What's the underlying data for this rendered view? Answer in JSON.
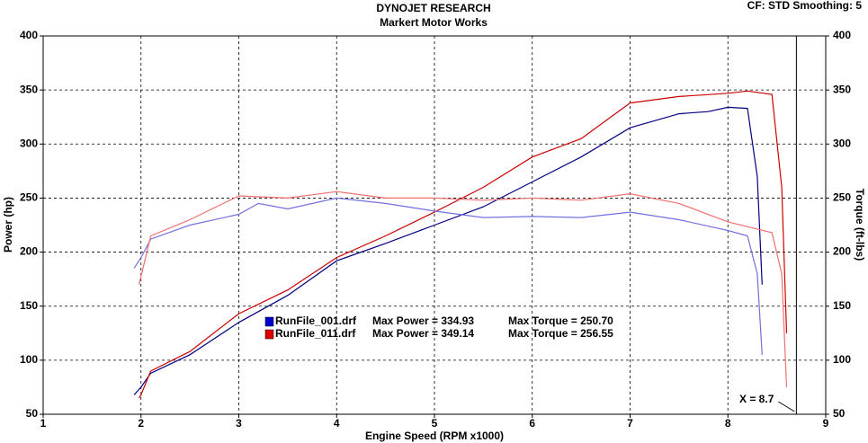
{
  "chart_data": {
    "type": "line",
    "title": "DYNOJET RESEARCH",
    "subtitle": "Markert Motor Works",
    "corner_note": "CF: STD  Smoothing: 5",
    "x_label": "Engine Speed (RPM x1000)",
    "y_label": "Power (hp)",
    "y2_label": "Torque (ft-lbs)",
    "xlim": [
      1,
      9
    ],
    "xticks": [
      1,
      2,
      3,
      4,
      5,
      6,
      7,
      8,
      9
    ],
    "ylim": [
      50,
      400
    ],
    "yticks": [
      50,
      100,
      150,
      200,
      250,
      300,
      350,
      400
    ],
    "y2lim": [
      50,
      400
    ],
    "y2ticks": [
      50,
      100,
      150,
      200,
      250,
      300,
      350,
      400
    ],
    "grid": true,
    "cursor": {
      "value": 8.7,
      "label": "X = 8.7"
    },
    "legend": [
      {
        "name": "RunFile_001.drf",
        "power_label": "Max Power = 334.93",
        "torque_label": "Max Torque = 250.70",
        "color": "#0000cc"
      },
      {
        "name": "RunFile_011.drf",
        "power_label": "Max Power = 349.14",
        "torque_label": "Max Torque = 256.55",
        "color": "#dd0000"
      }
    ],
    "series": [
      {
        "color": "#000080",
        "x": [
          1.93,
          2.0,
          2.1,
          2.5,
          3.0,
          3.5,
          4.0,
          4.5,
          5.0,
          5.5,
          6.0,
          6.5,
          7.0,
          7.5,
          7.8,
          8.0,
          8.2,
          8.3,
          8.35
        ],
        "values": [
          68,
          75,
          88,
          105,
          135,
          160,
          192,
          208,
          225,
          242,
          265,
          288,
          315,
          328,
          330,
          334,
          333,
          270,
          170
        ]
      },
      {
        "color": "#cc0000",
        "x": [
          1.98,
          2.0,
          2.1,
          2.5,
          3.0,
          3.5,
          4.0,
          4.5,
          5.0,
          5.5,
          6.0,
          6.5,
          7.0,
          7.5,
          8.0,
          8.2,
          8.45,
          8.55,
          8.6
        ],
        "values": [
          65,
          68,
          90,
          108,
          143,
          165,
          195,
          215,
          237,
          260,
          288,
          305,
          338,
          344,
          347,
          349,
          346,
          260,
          125
        ]
      },
      {
        "color": "#7070e0",
        "axis": "y2",
        "x": [
          1.93,
          2.0,
          2.1,
          2.5,
          3.0,
          3.2,
          3.5,
          4.0,
          4.5,
          5.0,
          5.5,
          6.0,
          6.5,
          7.0,
          7.5,
          8.0,
          8.2,
          8.3,
          8.35
        ],
        "values": [
          185,
          195,
          212,
          225,
          235,
          245,
          240,
          250,
          245,
          238,
          232,
          233,
          232,
          237,
          230,
          220,
          215,
          180,
          105
        ]
      },
      {
        "color": "#f07070",
        "axis": "y2",
        "x": [
          1.98,
          2.1,
          2.5,
          3.0,
          3.5,
          4.0,
          4.5,
          5.0,
          5.5,
          6.0,
          6.5,
          7.0,
          7.5,
          8.0,
          8.45,
          8.55,
          8.6
        ],
        "values": [
          170,
          215,
          230,
          252,
          250,
          256,
          250,
          250,
          248,
          250,
          248,
          254,
          245,
          228,
          218,
          180,
          75
        ]
      }
    ]
  }
}
